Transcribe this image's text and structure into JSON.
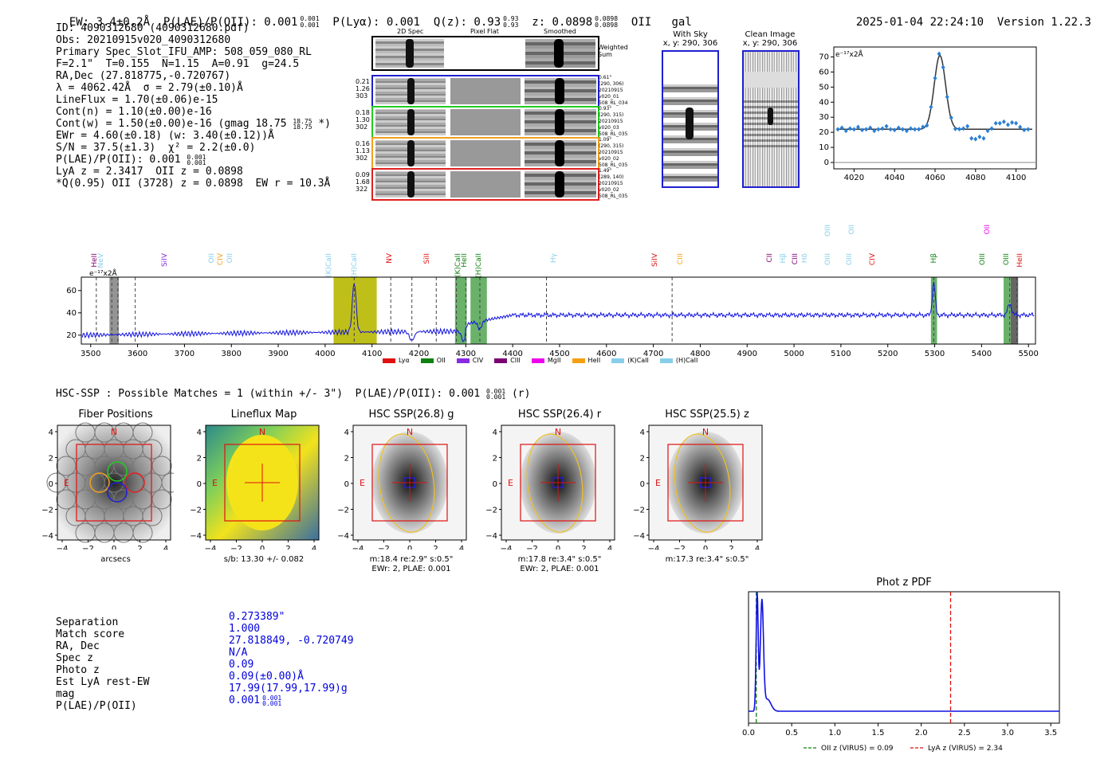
{
  "header": {
    "ew": "EW: 3.4±0.2Å",
    "plae": "P(LAE)/P(OII): 0.001",
    "plae_up": "0.001",
    "plae_dn": "0.001",
    "plya": "P(Lyα): 0.001",
    "qz": "Q(z): 0.93",
    "qz_up": "0.93",
    "qz_dn": "0.93",
    "z": "z: 0.0898",
    "z_up": "0.0898",
    "z_dn": "0.0898",
    "line": "OII",
    "gal": "gal",
    "datetime": "2025-01-04 22:24:10",
    "version": "Version 1.22.3"
  },
  "info": {
    "id": "ID: 4090312680 (4090312680.pdf)",
    "obs": "Obs: 20210915v020_4090312680",
    "primary": "Primary Spec_Slot_IFU_AMP: 508_059_080_RL",
    "params": "F=2.1\"  T=0.155  N=1.15  A=0.91  g=24.5",
    "radec": "RA,Dec (27.818775,-0.720767)",
    "lambda": "λ = 4062.42Å  σ = 2.79(±0.10)Å",
    "lineflux": "LineFlux = 1.70(±0.06)e-15",
    "contn": "Cont(n) = 1.10(±0.00)e-16",
    "contw": "Cont(w) = 1.50(±0.00)e-16 (gmag 18.75",
    "contw_up": "18.75",
    "contw_dn": "18.75",
    "contw_end": "*)",
    "ewr": "EWr = 4.60(±0.18) (w: 3.40(±0.12))Å",
    "sn": "S/N = 37.5(±1.3)  χ² = 2.2(±0.0)",
    "plae": "P(LAE)/P(OII): 0.001",
    "plae_up": "0.001",
    "plae_dn": "0.001",
    "lya": "LyA z = 2.3417  OII z = 0.0898",
    "q": "*Q(0.95) OII (3728) z = 0.0898  EW r = 10.3Å"
  },
  "spec2d": {
    "col_labels": [
      "2D Spec",
      "Pixel Flat",
      "Smoothed"
    ],
    "weighted_sum": "Weighted Sum",
    "rows": [
      {
        "left": [
          "0.21",
          "1.26",
          "303"
        ],
        "right": [
          "0.61\"",
          "(290, 306)",
          "20210915",
          "v020_01",
          "508_RL_034"
        ],
        "color": "#1f1fd0"
      },
      {
        "left": [
          "0.18",
          "1.30",
          "302"
        ],
        "right": [
          "0.93\"",
          "(290, 315)",
          "20210915",
          "v020_03",
          "508_RL_035"
        ],
        "color": "#22cc22"
      },
      {
        "left": [
          "0.16",
          "1.13",
          "302"
        ],
        "right": [
          "1.09\"",
          "(290, 315)",
          "20210915",
          "v020_02",
          "508_RL_035"
        ],
        "color": "#f0a020"
      },
      {
        "left": [
          "0.09",
          "1.68",
          "322"
        ],
        "right": [
          "1.49\"",
          "(289, 140)",
          "20210915",
          "v020_02",
          "508_RL_035"
        ],
        "color": "#e02020"
      }
    ]
  },
  "withsky": {
    "title": "With Sky",
    "coords": "x, y: 290, 306"
  },
  "clean": {
    "title": "Clean Image",
    "coords": "x, y: 290, 306"
  },
  "zoom_chart": {
    "unit": "e⁻¹⁷x2Å",
    "x_ticks": [
      "4020",
      "4040",
      "4060",
      "4080",
      "4100"
    ],
    "y_ticks": [
      "0",
      "10",
      "20",
      "30",
      "40",
      "50",
      "60",
      "70"
    ]
  },
  "full_spec": {
    "unit": "e⁻¹⁷x2Å",
    "x_ticks": [
      "3500",
      "3600",
      "3700",
      "3800",
      "3900",
      "4000",
      "4100",
      "4200",
      "4300",
      "4400",
      "4500",
      "4600",
      "4700",
      "4800",
      "4900",
      "5000",
      "5100",
      "5200",
      "5300",
      "5400",
      "5500"
    ],
    "y_ticks": [
      "20",
      "40",
      "60"
    ],
    "legend": [
      {
        "label": "Lyα",
        "color": "#e01010"
      },
      {
        "label": "OII",
        "color": "#108010"
      },
      {
        "label": "CIV",
        "color": "#8a2be2"
      },
      {
        "label": "CIII",
        "color": "#7b0070"
      },
      {
        "label": "MgII",
        "color": "#ee00ee"
      },
      {
        "label": "HeII",
        "color": "#f5a010"
      },
      {
        "label": "(K)CaII",
        "color": "#87ceeb"
      },
      {
        "label": "(H)CaII",
        "color": "#87ceeb"
      }
    ],
    "top_labels": [
      {
        "t": "HeII",
        "c": "#7b0070"
      },
      {
        "t": "NeV",
        "c": "#87ceeb"
      },
      {
        "t": "SiIV",
        "c": "#8a2be2"
      },
      {
        "t": "OII",
        "c": "#87ceeb"
      },
      {
        "t": "CIV",
        "c": "#f5a010"
      },
      {
        "t": "OII",
        "c": "#87ceeb"
      },
      {
        "t": "(K)CaII",
        "c": "#87ceeb"
      },
      {
        "t": "(H)CaII",
        "c": "#87ceeb"
      },
      {
        "t": "NV",
        "c": "#e01010"
      },
      {
        "t": "SiII",
        "c": "#e01010"
      },
      {
        "t": "(K)CaII",
        "c": "#108010"
      },
      {
        "t": "HeII",
        "c": "#108010"
      },
      {
        "t": "(H)CaII",
        "c": "#108010"
      },
      {
        "t": "Hγ",
        "c": "#87ceeb"
      },
      {
        "t": "SiIV",
        "c": "#e01010"
      },
      {
        "t": "CIII",
        "c": "#f5a010"
      },
      {
        "t": "CII",
        "c": "#7b0070"
      },
      {
        "t": "Hβ",
        "c": "#87ceeb"
      },
      {
        "t": "CIII",
        "c": "#7b0070"
      },
      {
        "t": "Hδ",
        "c": "#87ceeb"
      },
      {
        "t": "OIII",
        "c": "#87ceeb"
      },
      {
        "t": "OIII",
        "c": "#87ceeb"
      },
      {
        "t": "CIV",
        "c": "#e01010"
      },
      {
        "t": "Hβ",
        "c": "#108010"
      },
      {
        "t": "OIII",
        "c": "#108010"
      },
      {
        "t": "OIII",
        "c": "#108010"
      },
      {
        "t": "HeII",
        "c": "#e01010"
      },
      {
        "t": "OII",
        "c": "#87ceeb"
      },
      {
        "t": "OIII",
        "c": "#87ceeb"
      },
      {
        "t": "OII",
        "c": "#ee00ee"
      }
    ]
  },
  "hsc": {
    "title": "HSC-SSP : Possible Matches = 1 (within +/- 3\")  P(LAE)/P(OII): 0.001",
    "title_up": "0.001",
    "title_dn": "0.001",
    "title_end": "(r)"
  },
  "panels": [
    {
      "title": "Fiber Positions",
      "cap1": "arcsecs",
      "cap2": ""
    },
    {
      "title": "Lineflux Map",
      "cap1": "s/b: 13.30 +/- 0.082",
      "cap2": ""
    },
    {
      "title": "HSC SSP(26.8) g",
      "cap1": "m:18.4  re:2.9\"  s:0.5\"",
      "cap2": "EWr: 2, PLAE: 0.001"
    },
    {
      "title": "HSC SSP(26.4) r",
      "cap1": "m:17.8  re:3.4\"  s:0.5\"",
      "cap2": "EWr: 2, PLAE: 0.001"
    },
    {
      "title": "HSC SSP(25.5) z",
      "cap1": "m:17.3  re:3.4\"  s:0.5\"",
      "cap2": ""
    }
  ],
  "panel_ticks": {
    "x": [
      "−4",
      "−2",
      "0",
      "2",
      "4"
    ],
    "y": [
      "4",
      "2",
      "0",
      "−2",
      "−4"
    ],
    "n": "N",
    "e": "E"
  },
  "match": {
    "labels": [
      "Separation",
      "Match score",
      "RA, Dec",
      "Spec z",
      "Photo z",
      "Est LyA rest-EW",
      "mag",
      "P(LAE)/P(OII)"
    ],
    "values": [
      "0.273389\"",
      "1.000",
      "27.818849, -0.720749",
      "N/A",
      "0.09",
      "0.09(±0.00)Å",
      "17.99(17.99,17.99)g",
      "0.001"
    ],
    "plae_up": "0.001",
    "plae_dn": "0.001"
  },
  "photz": {
    "title": "Phot z PDF",
    "x_ticks": [
      "0.0",
      "0.5",
      "1.0",
      "1.5",
      "2.0",
      "2.5",
      "3.0",
      "3.5"
    ],
    "legend_oii": "OII z (VIRUS) = 0.09",
    "legend_lya": "LyA z (VIRUS) = 2.34"
  }
}
